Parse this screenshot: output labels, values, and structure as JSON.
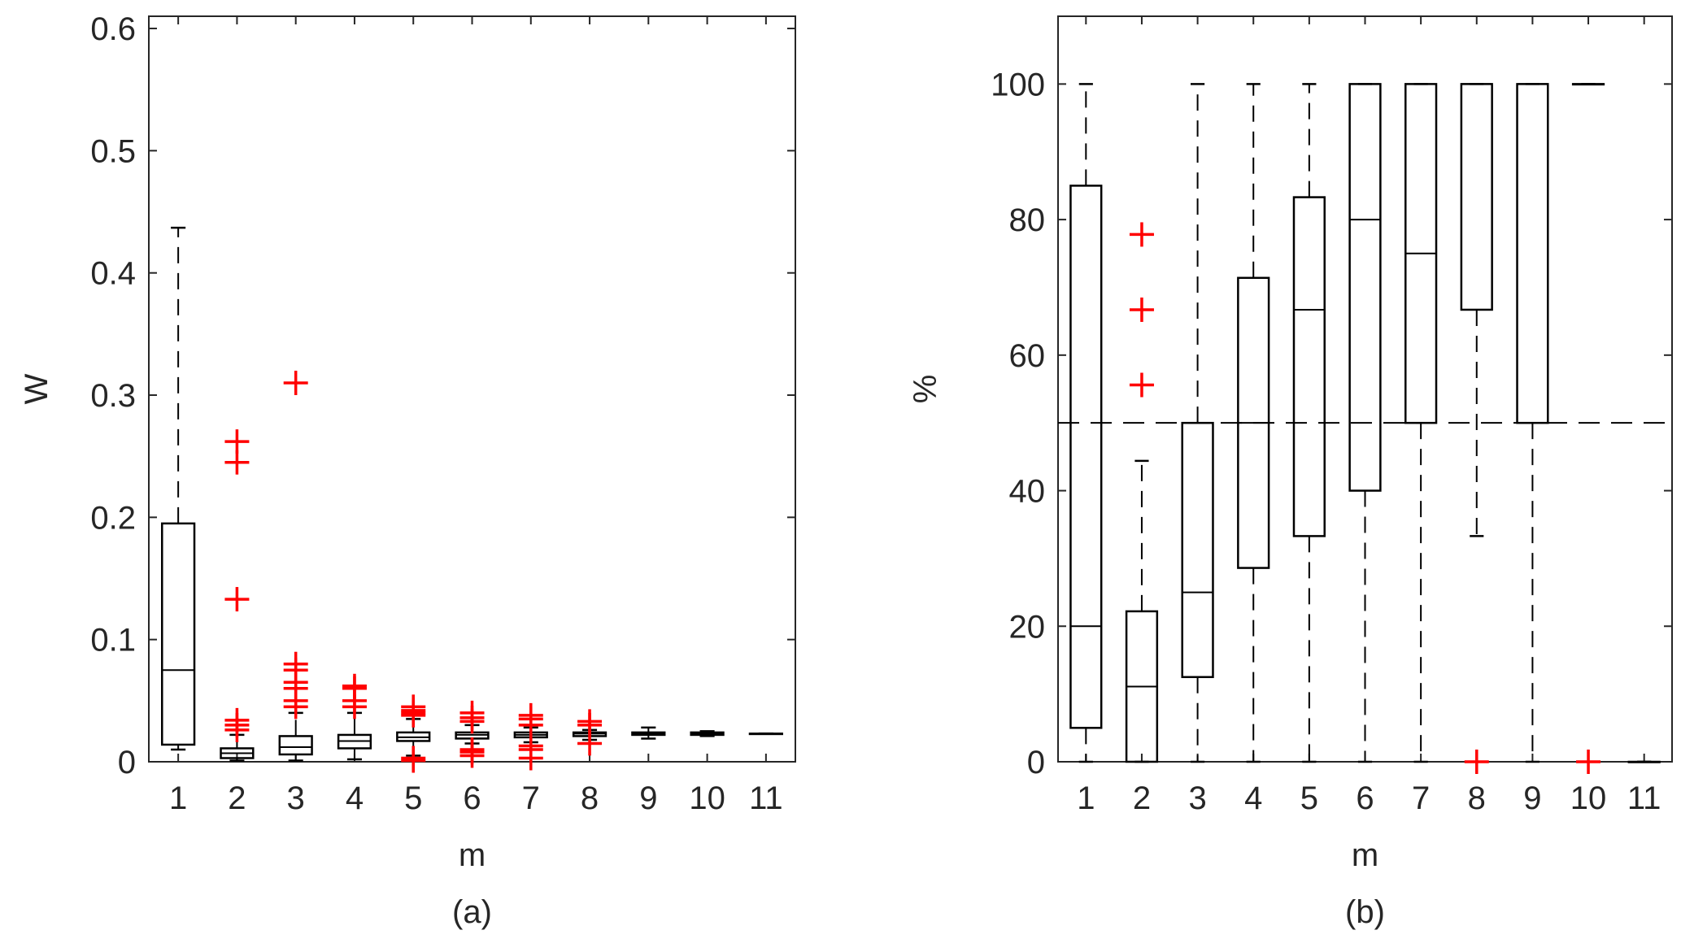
{
  "chart_data": [
    {
      "type": "box",
      "panel_label": "(a)",
      "xlabel": "m",
      "ylabel": "W",
      "ylim": [
        0,
        0.61
      ],
      "yticks": [
        0,
        0.1,
        0.2,
        0.3,
        0.4,
        0.5,
        0.6
      ],
      "ytick_labels": [
        "0",
        "0.1",
        "0.2",
        "0.3",
        "0.4",
        "0.5",
        "0.6"
      ],
      "categories": [
        "1",
        "2",
        "3",
        "4",
        "5",
        "6",
        "7",
        "8",
        "9",
        "10",
        "11"
      ],
      "boxes": [
        {
          "low": 0.01,
          "q1": 0.014,
          "median": 0.075,
          "q3": 0.195,
          "high": 0.437,
          "outliers": []
        },
        {
          "low": 0.001,
          "q1": 0.003,
          "median": 0.007,
          "q3": 0.011,
          "high": 0.022,
          "outliers": [
            0.026,
            0.03,
            0.034,
            0.133,
            0.245,
            0.262
          ]
        },
        {
          "low": 0.001,
          "q1": 0.006,
          "median": 0.012,
          "q3": 0.021,
          "high": 0.04,
          "outliers": [
            0.045,
            0.05,
            0.06,
            0.065,
            0.075,
            0.08,
            0.31
          ]
        },
        {
          "low": 0.002,
          "q1": 0.011,
          "median": 0.017,
          "q3": 0.022,
          "high": 0.04,
          "outliers": [
            0.045,
            0.05,
            0.06,
            0.062
          ]
        },
        {
          "low": 0.005,
          "q1": 0.017,
          "median": 0.02,
          "q3": 0.024,
          "high": 0.035,
          "outliers": [
            0.001,
            0.003,
            0.038,
            0.04,
            0.042,
            0.045
          ]
        },
        {
          "low": 0.015,
          "q1": 0.019,
          "median": 0.022,
          "q3": 0.024,
          "high": 0.03,
          "outliers": [
            0.005,
            0.008,
            0.01,
            0.033,
            0.036,
            0.04
          ]
        },
        {
          "low": 0.016,
          "q1": 0.02,
          "median": 0.022,
          "q3": 0.024,
          "high": 0.028,
          "outliers": [
            0.003,
            0.01,
            0.013,
            0.03,
            0.035,
            0.038
          ]
        },
        {
          "low": 0.018,
          "q1": 0.021,
          "median": 0.023,
          "q3": 0.024,
          "high": 0.026,
          "outliers": [
            0.015,
            0.03,
            0.033
          ]
        },
        {
          "low": 0.019,
          "q1": 0.022,
          "median": 0.023,
          "q3": 0.024,
          "high": 0.028,
          "outliers": []
        },
        {
          "low": 0.021,
          "q1": 0.022,
          "median": 0.023,
          "q3": 0.024,
          "high": 0.025,
          "outliers": []
        },
        {
          "low": 0.023,
          "q1": 0.023,
          "median": 0.023,
          "q3": 0.023,
          "high": 0.023,
          "outliers": []
        }
      ],
      "reference_line": null
    },
    {
      "type": "box",
      "panel_label": "(b)",
      "xlabel": "m",
      "ylabel": "%",
      "ylim": [
        0,
        110
      ],
      "yticks": [
        0,
        20,
        40,
        60,
        80,
        100
      ],
      "ytick_labels": [
        "0",
        "20",
        "40",
        "60",
        "80",
        "100"
      ],
      "categories": [
        "1",
        "2",
        "3",
        "4",
        "5",
        "6",
        "7",
        "8",
        "9",
        "10",
        "11"
      ],
      "boxes": [
        {
          "low": 0,
          "q1": 5,
          "median": 20,
          "q3": 85,
          "high": 100,
          "outliers": []
        },
        {
          "low": 0,
          "q1": 0,
          "median": 11.1,
          "q3": 22.2,
          "high": 44.4,
          "outliers": [
            55.6,
            66.7,
            77.8
          ]
        },
        {
          "low": 0,
          "q1": 12.5,
          "median": 25,
          "q3": 50,
          "high": 100,
          "outliers": []
        },
        {
          "low": 0,
          "q1": 28.6,
          "median": 50,
          "q3": 71.4,
          "high": 100,
          "outliers": []
        },
        {
          "low": 0,
          "q1": 33.3,
          "median": 66.7,
          "q3": 83.3,
          "high": 100,
          "outliers": []
        },
        {
          "low": 0,
          "q1": 40,
          "median": 80,
          "q3": 100,
          "high": 100,
          "outliers": []
        },
        {
          "low": 0,
          "q1": 50,
          "median": 75,
          "q3": 100,
          "high": 100,
          "outliers": []
        },
        {
          "low": 33.3,
          "q1": 66.7,
          "median": 100,
          "q3": 100,
          "high": 100,
          "outliers": [
            0
          ]
        },
        {
          "low": 0,
          "q1": 50,
          "median": 100,
          "q3": 100,
          "high": 100,
          "outliers": []
        },
        {
          "low": 100,
          "q1": 100,
          "median": 100,
          "q3": 100,
          "high": 100,
          "outliers": [
            0
          ]
        },
        {
          "low": 0,
          "q1": 0,
          "median": 0,
          "q3": 0,
          "high": 0,
          "outliers": []
        }
      ],
      "reference_line": 50
    }
  ],
  "colors": {
    "outlier": "#ff0000",
    "box": "#000000",
    "axis": "#262626"
  }
}
